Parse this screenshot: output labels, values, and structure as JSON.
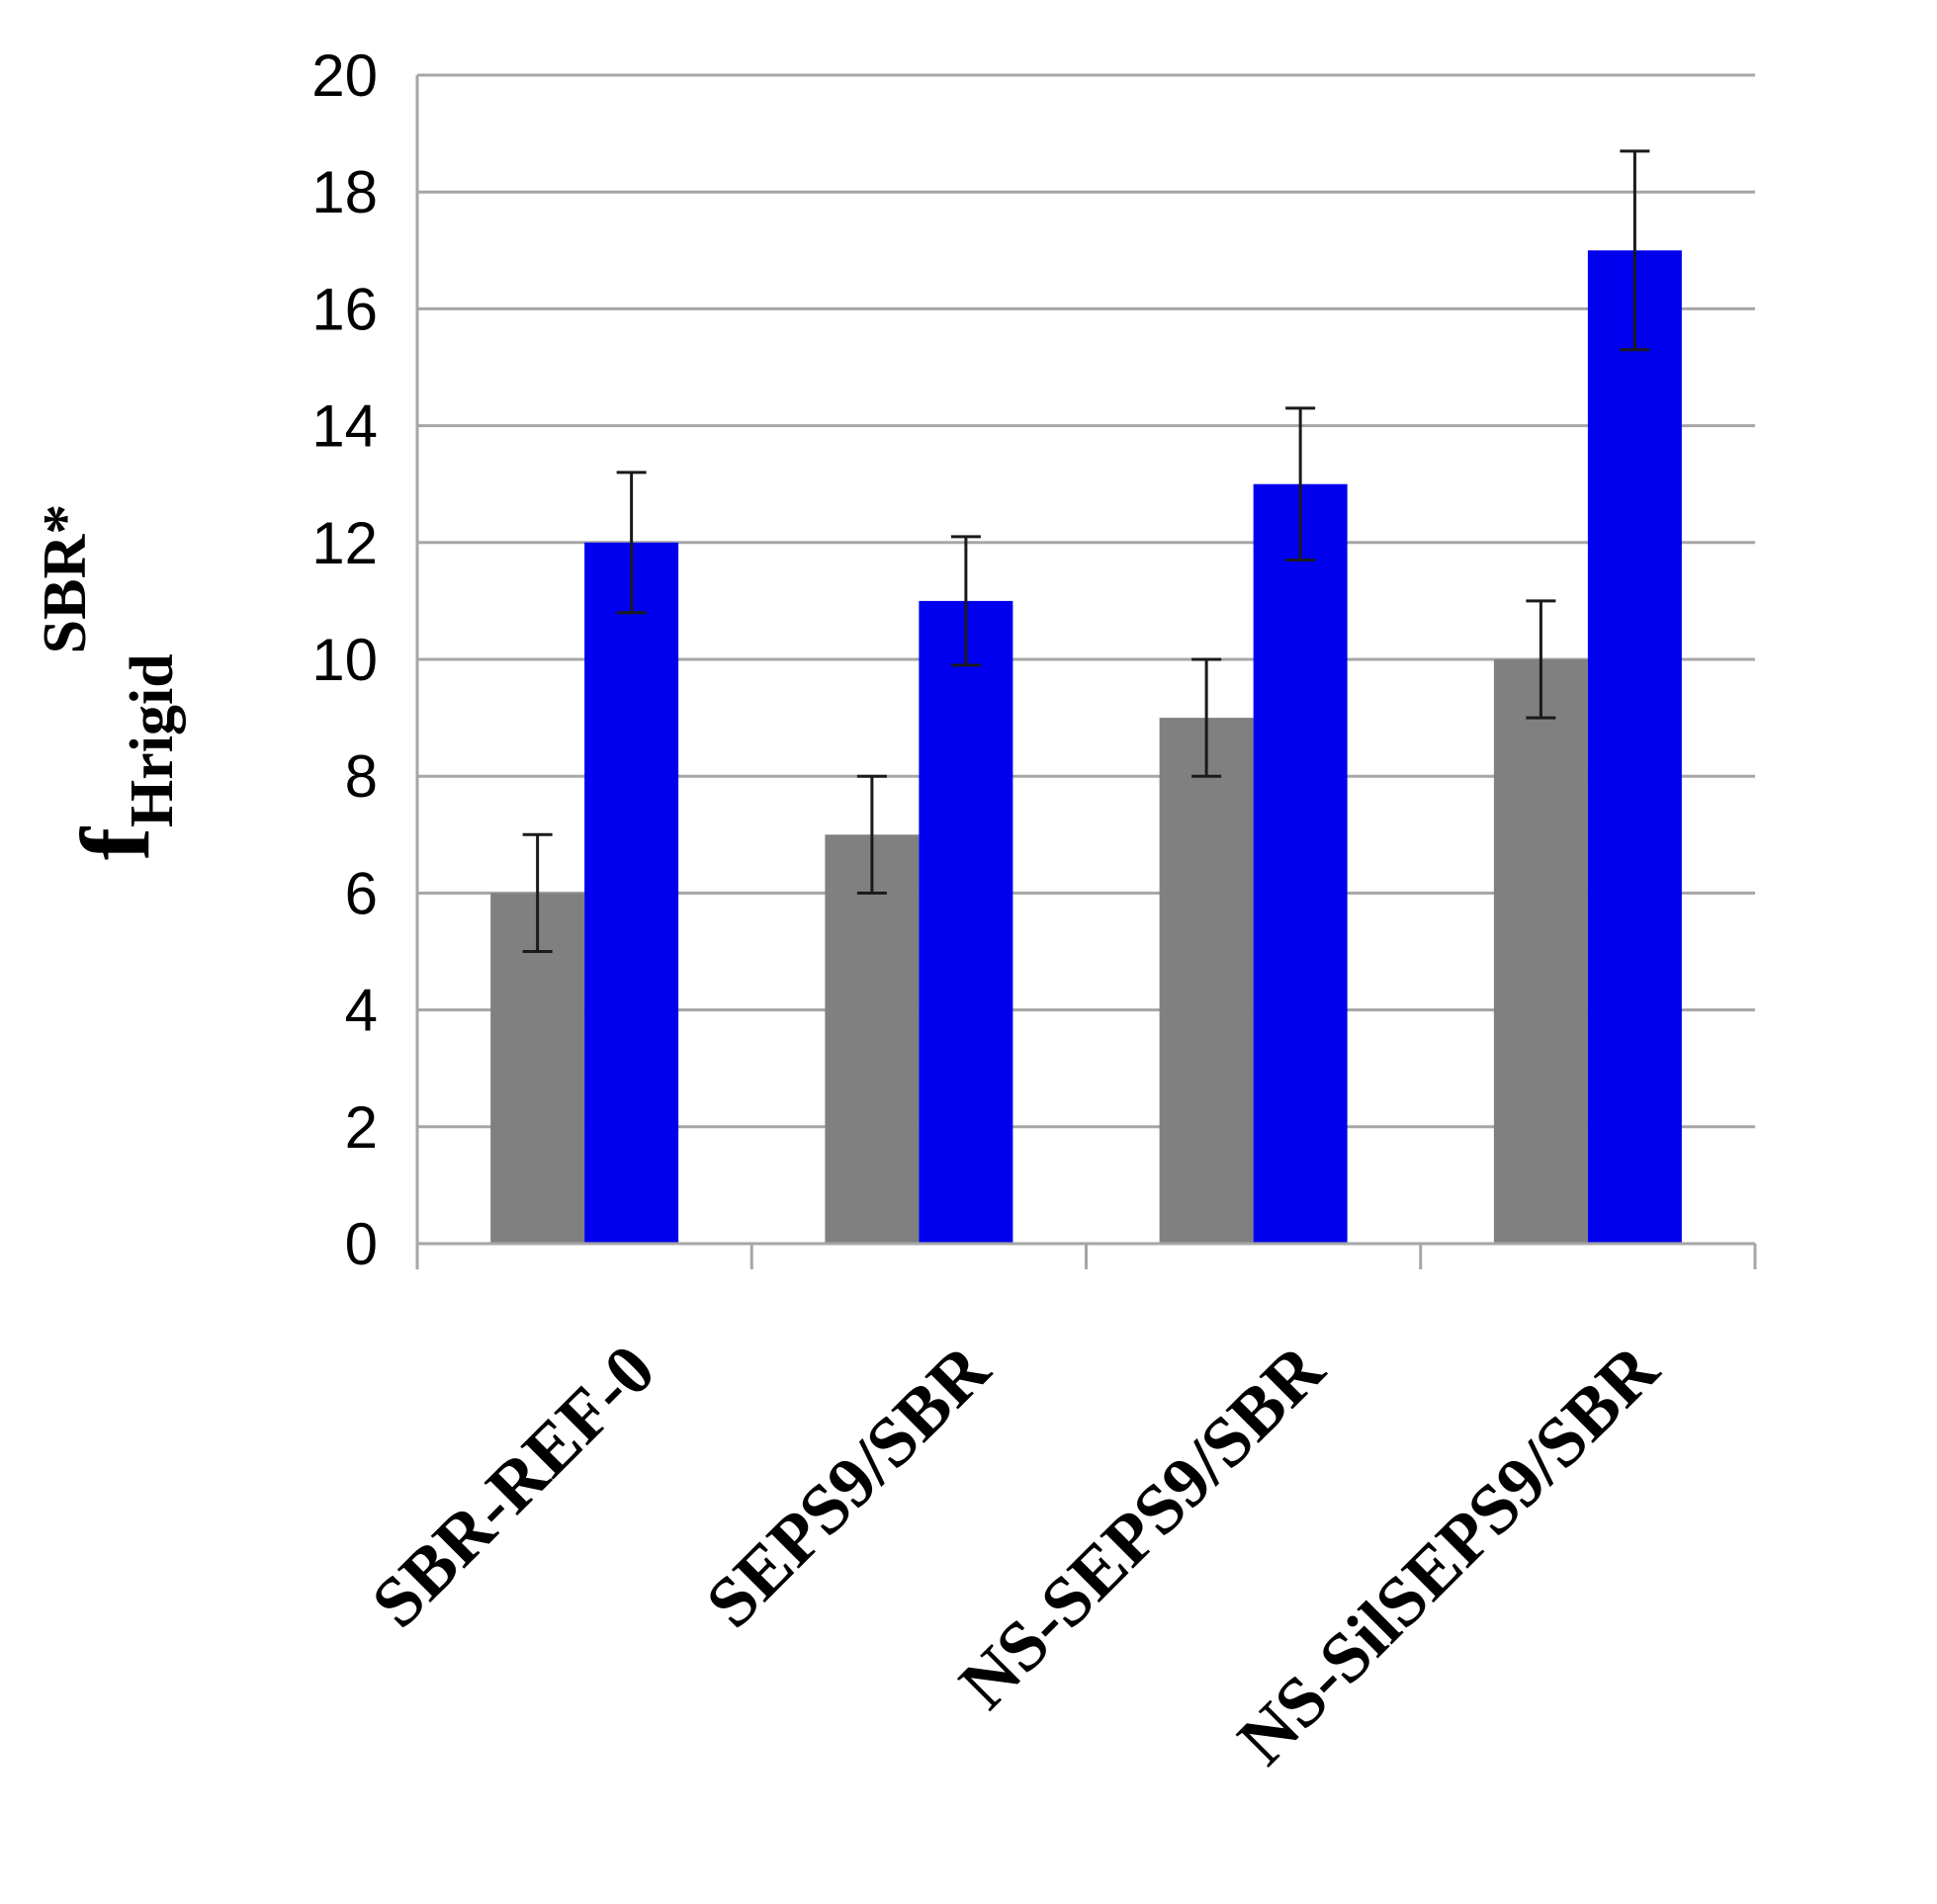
{
  "chart_data": {
    "type": "bar",
    "title": "",
    "xlabel": "",
    "ylabel": {
      "main": "f",
      "subscript": "Hrigid",
      "superscript": "SBR*"
    },
    "ylim": [
      0,
      20
    ],
    "yticks": [
      0,
      2,
      4,
      6,
      8,
      10,
      12,
      14,
      16,
      18,
      20
    ],
    "grid": true,
    "legend": "none",
    "categories": [
      "SBR-REF-0",
      "SEPS9/SBR",
      "NS-SEPS9/SBR",
      "NS-SilSEPS9/SBR"
    ],
    "series": [
      {
        "color": "#808080",
        "values": [
          6,
          7,
          9,
          10
        ],
        "error": [
          1,
          1,
          1,
          1
        ]
      },
      {
        "color": "#0000ee",
        "values": [
          12,
          11,
          13,
          17
        ],
        "error": [
          1.2,
          1.1,
          1.3,
          1.7
        ]
      }
    ]
  }
}
